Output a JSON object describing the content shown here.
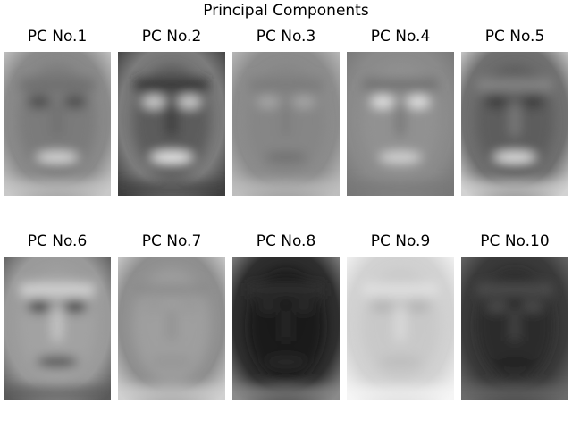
{
  "figure": {
    "title": "Principal Components",
    "panels": [
      {
        "label": "PC No.1",
        "tone": "mid",
        "base": "#8a8a8a",
        "face": "#7a7a7a",
        "eyes": "#4a4a4a",
        "mouth": "#dcdcdc",
        "brow": "#6b6b6b",
        "edge": "#c8c8c8"
      },
      {
        "label": "PC No.2",
        "tone": "mid",
        "base": "#7c7c7c",
        "face": "#5a5a5a",
        "eyes": "#cfcfcf",
        "mouth": "#f2f2f2",
        "brow": "#2a2a2a",
        "edge": "#3e3e3e"
      },
      {
        "label": "PC No.3",
        "tone": "flat",
        "base": "#8c8c8c",
        "face": "#858585",
        "eyes": "#a6a6a6",
        "mouth": "#6f6f6f",
        "brow": "#7b7b7b",
        "edge": "#bdbdbd"
      },
      {
        "label": "PC No.4",
        "tone": "mid",
        "base": "#8a8a8a",
        "face": "#929292",
        "eyes": "#e3e3e3",
        "mouth": "#d8d8d8",
        "brow": "#6a6a6a",
        "edge": "#777777"
      },
      {
        "label": "PC No.5",
        "tone": "dark",
        "base": "#707070",
        "face": "#5c5c5c",
        "eyes": "#3a3a3a",
        "mouth": "#e6e6e6",
        "brow": "#8e8e8e",
        "edge": "#d2d2d2"
      },
      {
        "label": "PC No.6",
        "tone": "light",
        "base": "#9a9a9a",
        "face": "#a2a2a2",
        "eyes": "#3c3c3c",
        "mouth": "#4a4a4a",
        "brow": "#dedede",
        "edge": "#5a5a5a"
      },
      {
        "label": "PC No.7",
        "tone": "flat",
        "base": "#8e8e8e",
        "face": "#a0a0a0",
        "eyes": "#9a9a9a",
        "mouth": "#959595",
        "brow": "#8a8a8a",
        "edge": "#d0d0d0"
      },
      {
        "label": "PC No.8",
        "tone": "dark",
        "base": "#2e2e2e",
        "face": "#1a1a1a",
        "eyes": "#2b2b2b",
        "mouth": "#2a2a2a",
        "brow": "#333333",
        "edge": "#8a8a8a"
      },
      {
        "label": "PC No.9",
        "tone": "pale",
        "base": "#d2d2d2",
        "face": "#c8c8c8",
        "eyes": "#b4b4b4",
        "mouth": "#bcbcbc",
        "brow": "#e6e6e6",
        "edge": "#f5f5f5"
      },
      {
        "label": "PC No.10",
        "tone": "dark",
        "base": "#3a3a3a",
        "face": "#2c2c2c",
        "eyes": "#4c4c4c",
        "mouth": "#242424",
        "brow": "#555555",
        "edge": "#6a6a6a"
      }
    ]
  }
}
